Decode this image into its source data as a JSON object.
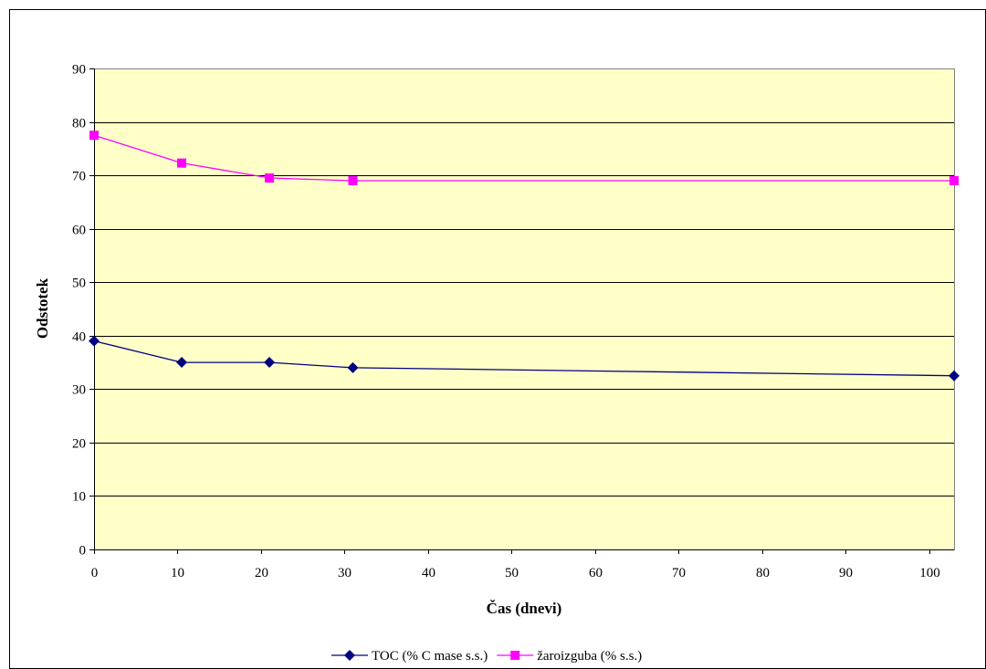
{
  "chart_data": {
    "type": "line",
    "xlabel": "Čas (dnevi)",
    "ylabel": "Odstotek",
    "xlim": [
      0,
      103
    ],
    "ylim": [
      0,
      90
    ],
    "x_ticks": [
      0,
      10,
      20,
      30,
      40,
      50,
      60,
      70,
      80,
      90,
      100
    ],
    "y_ticks": [
      0,
      10,
      20,
      30,
      40,
      50,
      60,
      70,
      80,
      90
    ],
    "grid": "horizontal",
    "plot_background": "#FFFFC8",
    "legend_position": "bottom",
    "series": [
      {
        "name": "TOC (% C mase s.s.)",
        "color": "#000080",
        "marker": "diamond",
        "x": [
          0,
          10.5,
          21,
          31,
          103
        ],
        "y": [
          39,
          35,
          35,
          34,
          32.5
        ]
      },
      {
        "name": "žaroizguba (% s.s.)",
        "color": "#FF00FF",
        "marker": "square",
        "x": [
          0,
          10.5,
          21,
          31,
          103
        ],
        "y": [
          77.5,
          72.3,
          69.5,
          69,
          69
        ]
      }
    ]
  }
}
